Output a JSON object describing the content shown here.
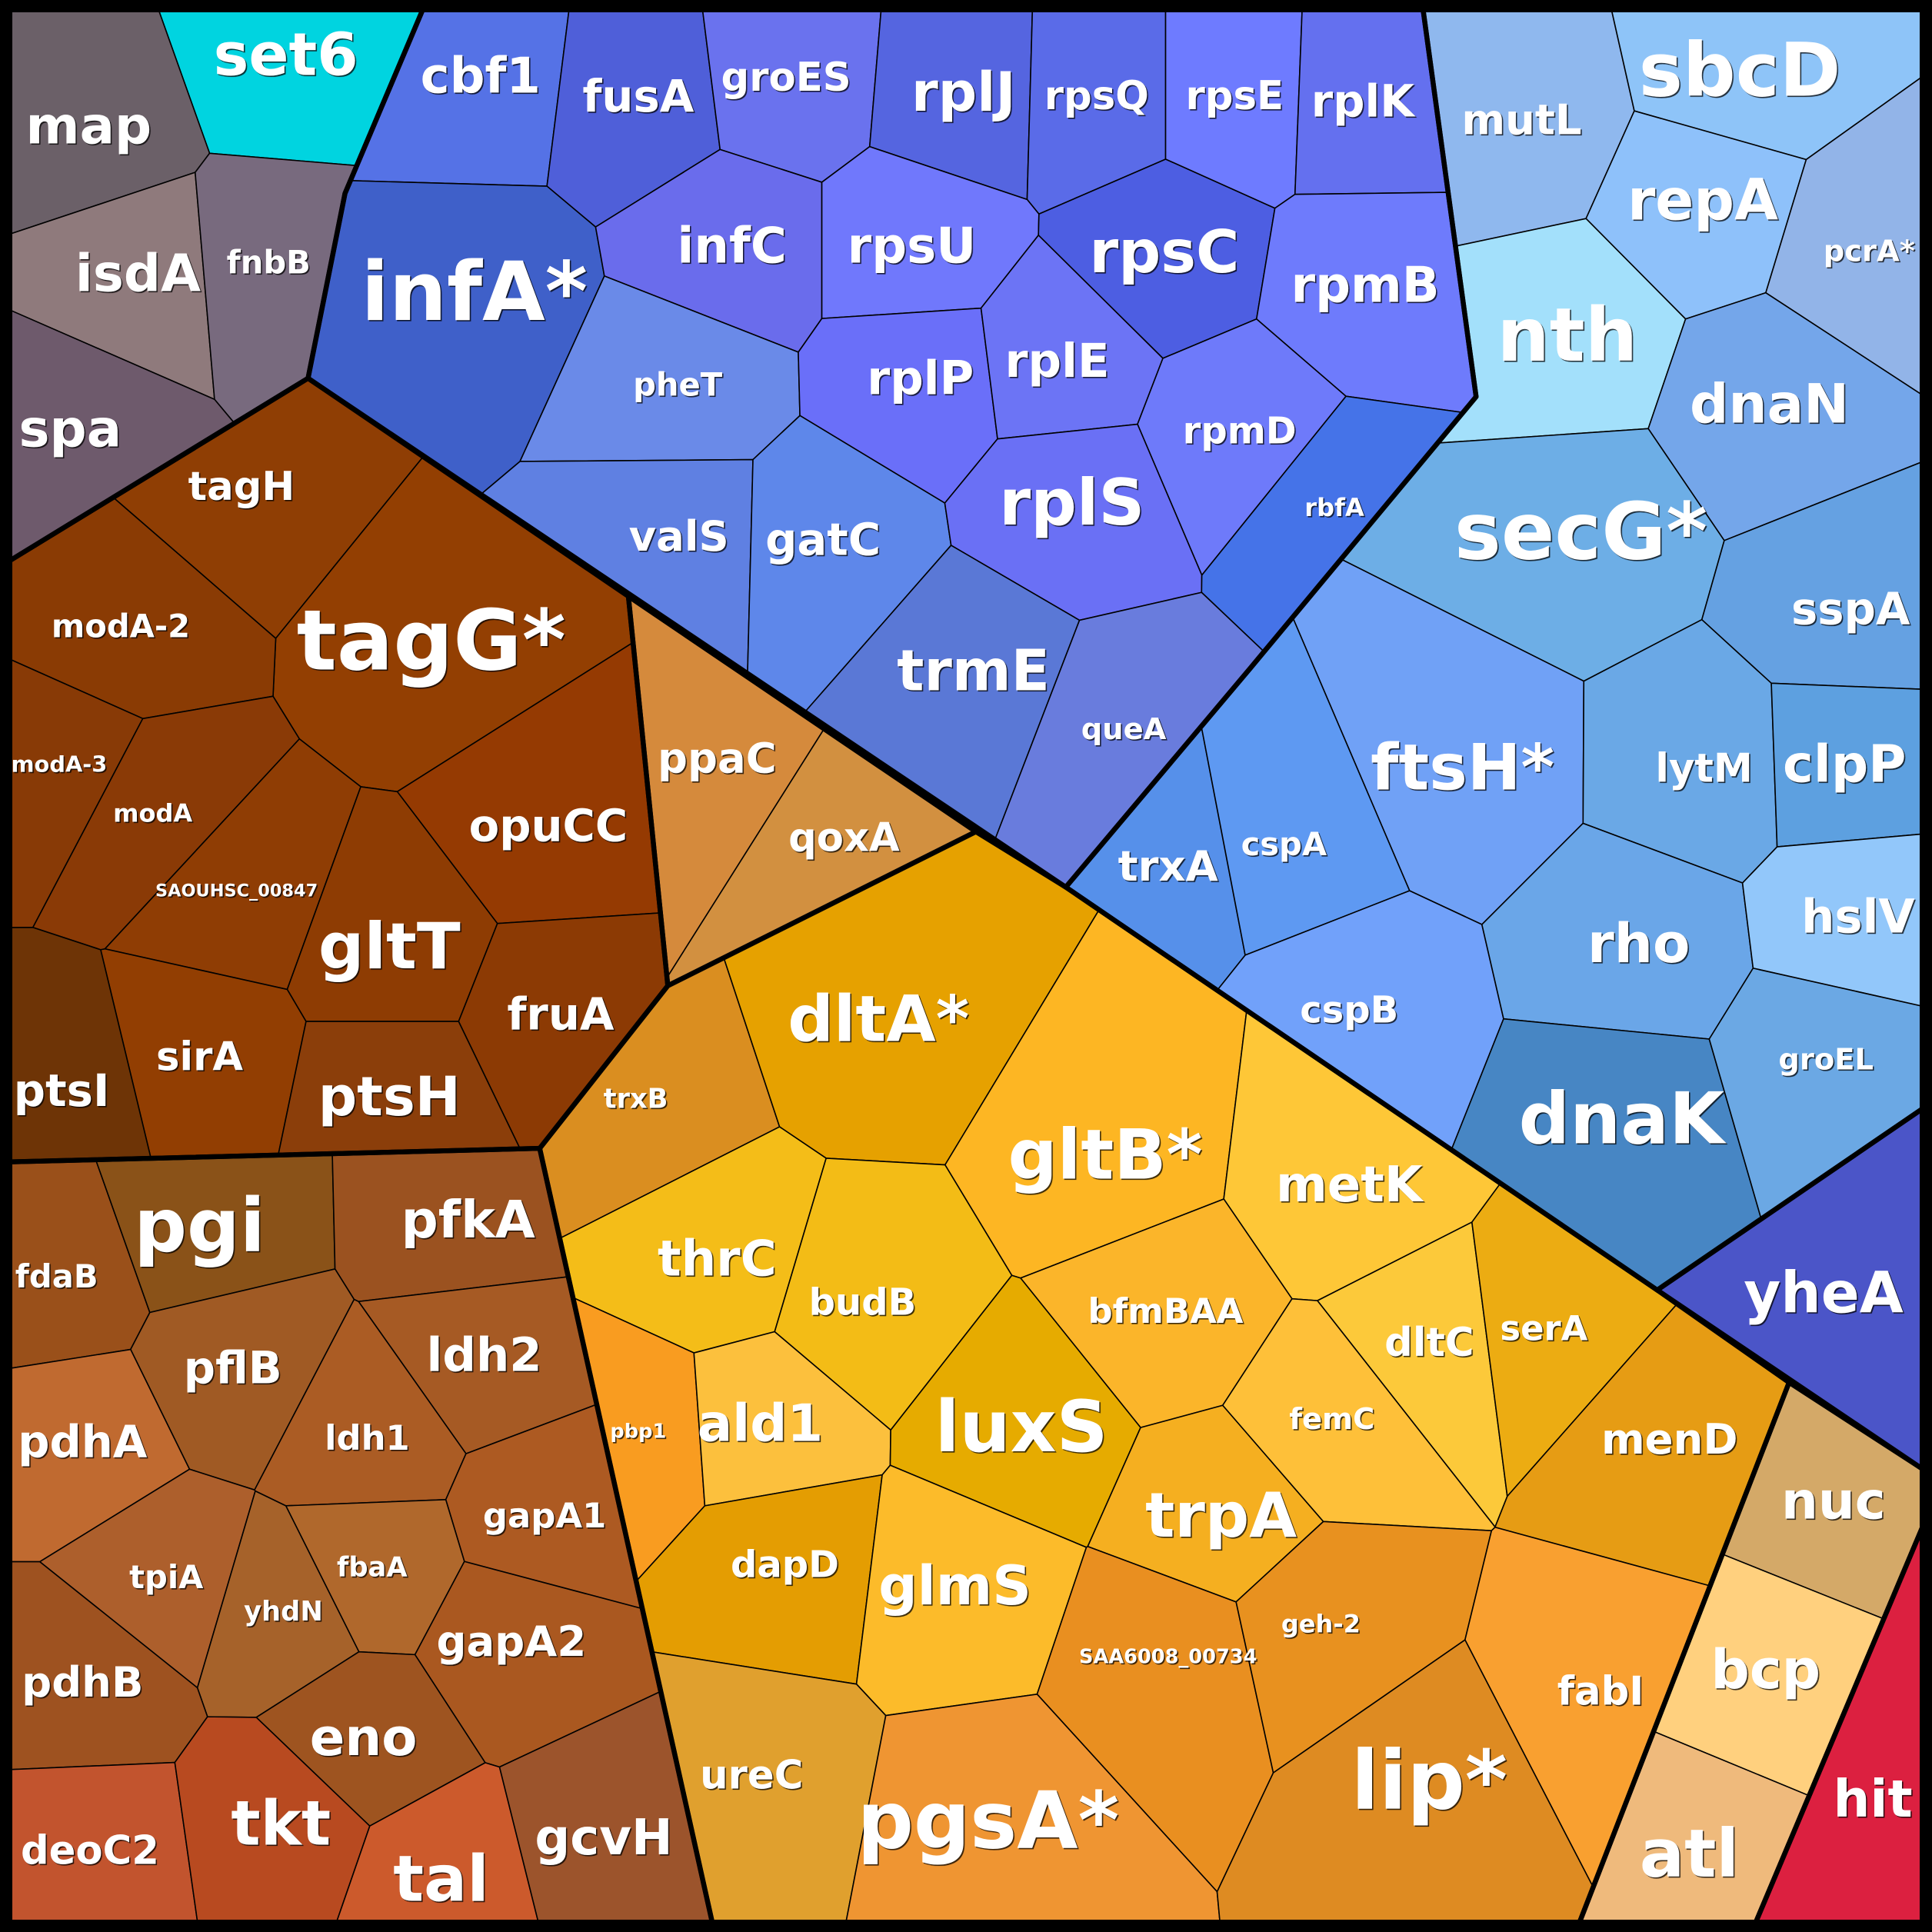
{
  "chart_data": {
    "type": "treemap",
    "subtype": "voronoi",
    "groups": [
      {
        "cells": [
          {
            "label": "set6",
            "color": "#00d4e0"
          },
          {
            "label": "map",
            "color": "#6b6068"
          },
          {
            "label": "isdA",
            "color": "#8f7a7c"
          },
          {
            "label": "fnbB",
            "color": "#786a7e"
          },
          {
            "label": "spa",
            "color": "#6e5a6c"
          }
        ]
      },
      {
        "cells": [
          {
            "label": "cbf1",
            "color": "#5572e6"
          },
          {
            "label": "fusA",
            "color": "#4f5fd9"
          },
          {
            "label": "groES",
            "color": "#6a72ee"
          },
          {
            "label": "rplJ",
            "color": "#5565e0"
          },
          {
            "label": "rpsQ",
            "color": "#5a6be8"
          },
          {
            "label": "rpsE",
            "color": "#6e7bff"
          },
          {
            "label": "rplK",
            "color": "#6470ef"
          },
          {
            "label": "infA*",
            "color": "#3f60c9"
          },
          {
            "label": "infC",
            "color": "#6a6cec"
          },
          {
            "label": "rpsU",
            "color": "#7078fc"
          },
          {
            "label": "rpsC",
            "color": "#4d5ee2"
          },
          {
            "label": "rpmB",
            "color": "#6e7bfc"
          },
          {
            "label": "pheT",
            "color": "#6a8ae8"
          },
          {
            "label": "rplP",
            "color": "#6a6ff9"
          },
          {
            "label": "rplE",
            "color": "#6c74f5"
          },
          {
            "label": "rpmD",
            "color": "#6e7afa"
          },
          {
            "label": "valS",
            "color": "#5f80e2"
          },
          {
            "label": "gatC",
            "color": "#5e87ea"
          },
          {
            "label": "rplS",
            "color": "#6a70f5"
          },
          {
            "label": "rbfA",
            "color": "#4573e8"
          },
          {
            "label": "trmE",
            "color": "#5a78d6"
          },
          {
            "label": "queA",
            "color": "#697cdd"
          }
        ]
      },
      {
        "cells": [
          {
            "label": "mutL",
            "color": "#8fb8ee"
          },
          {
            "label": "sbcD",
            "color": "#8ec4f8"
          },
          {
            "label": "repA",
            "color": "#8ec1fa"
          },
          {
            "label": "pcrA*",
            "color": "#92b4e8"
          },
          {
            "label": "nth",
            "color": "#a3e0fb"
          },
          {
            "label": "dnaN",
            "color": "#74a6ea"
          },
          {
            "label": "secG*",
            "color": "#6daee6"
          },
          {
            "label": "sspA",
            "color": "#65a1e2"
          },
          {
            "label": "ftsH*",
            "color": "#70a1f6"
          },
          {
            "label": "lytM",
            "color": "#6aa8e6"
          },
          {
            "label": "clpP",
            "color": "#5da0e0"
          },
          {
            "label": "trxA",
            "color": "#5690ea"
          },
          {
            "label": "cspA",
            "color": "#5e99f2"
          },
          {
            "label": "cspB",
            "color": "#71a1fa"
          },
          {
            "label": "rho",
            "color": "#6aa6e8"
          },
          {
            "label": "hslV",
            "color": "#92c7fa"
          },
          {
            "label": "dnaK",
            "color": "#4786c4"
          },
          {
            "label": "groEL",
            "color": "#6ba8e4"
          }
        ]
      },
      {
        "cells": [
          {
            "label": "yheA",
            "color": "#4b55c8"
          }
        ]
      },
      {
        "cells": [
          {
            "label": "tagH",
            "color": "#8f3e04"
          },
          {
            "label": "tagG*",
            "color": "#933f02"
          },
          {
            "label": "modA-2",
            "color": "#8a3b04"
          },
          {
            "label": "modA-3",
            "color": "#883a06"
          },
          {
            "label": "modA",
            "color": "#8a3a06"
          },
          {
            "label": "SAOUHSC_00847",
            "color": "#8f3d04"
          },
          {
            "label": "opuCC",
            "color": "#953a02"
          },
          {
            "label": "gltT",
            "color": "#8e3c03"
          },
          {
            "label": "fruA",
            "color": "#8c3a04"
          },
          {
            "label": "sirA",
            "color": "#923e02"
          },
          {
            "label": "ptsH",
            "color": "#8b3e0a"
          },
          {
            "label": "ptsI",
            "color": "#6e3406"
          }
        ]
      },
      {
        "cells": [
          {
            "label": "ppaC",
            "color": "#d58a3c"
          },
          {
            "label": "qoxA",
            "color": "#d29040"
          }
        ]
      },
      {
        "cells": [
          {
            "label": "trxB",
            "color": "#da8e20"
          },
          {
            "label": "dltA*",
            "color": "#e6a100"
          },
          {
            "label": "gltB*",
            "color": "#fdb623"
          },
          {
            "label": "metK",
            "color": "#fec737"
          },
          {
            "label": "thrC",
            "color": "#f4bd18"
          },
          {
            "label": "budB",
            "color": "#f3bc16"
          },
          {
            "label": "bfmBAA",
            "color": "#fbb52a"
          },
          {
            "label": "dltC",
            "color": "#fcc93a"
          },
          {
            "label": "serA",
            "color": "#ecac12"
          },
          {
            "label": "pbp1",
            "color": "#f99c20"
          },
          {
            "label": "ald1",
            "color": "#fcc03d"
          },
          {
            "label": "luxS",
            "color": "#e6ab00"
          },
          {
            "label": "femC",
            "color": "#fec039"
          },
          {
            "label": "menD",
            "color": "#e69c14"
          },
          {
            "label": "dapD",
            "color": "#e49d02"
          },
          {
            "label": "glmS",
            "color": "#fcbb2a"
          },
          {
            "label": "trpA",
            "color": "#f5af20"
          },
          {
            "label": "SAA6008_00734",
            "color": "#e98f20"
          },
          {
            "label": "geh-2",
            "color": "#e8911f"
          },
          {
            "label": "fabI",
            "color": "#f9a030"
          },
          {
            "label": "ureC",
            "color": "#e0a02e"
          },
          {
            "label": "pgsA*",
            "color": "#ef9532"
          },
          {
            "label": "lip*",
            "color": "#de8b22"
          }
        ]
      },
      {
        "cells": [
          {
            "label": "nuc",
            "color": "#d4a968"
          },
          {
            "label": "bcp",
            "color": "#ffd07e"
          },
          {
            "label": "atl",
            "color": "#efba7c"
          }
        ]
      },
      {
        "cells": [
          {
            "label": "hit",
            "color": "#dc2040"
          }
        ]
      },
      {
        "cells": [
          {
            "label": "fdaB",
            "color": "#9a501a"
          },
          {
            "label": "pgi",
            "color": "#8a5218"
          },
          {
            "label": "pfkA",
            "color": "#9b5220"
          },
          {
            "label": "pflB",
            "color": "#a05a24"
          },
          {
            "label": "ldh2",
            "color": "#a65a24"
          },
          {
            "label": "pdhA",
            "color": "#c06a30"
          },
          {
            "label": "ldh1",
            "color": "#ab5c24"
          },
          {
            "label": "gapA1",
            "color": "#ad5a22"
          },
          {
            "label": "tpiA",
            "color": "#ad5f2c"
          },
          {
            "label": "fbaA",
            "color": "#b0682c"
          },
          {
            "label": "yhdN",
            "color": "#a6622a"
          },
          {
            "label": "gapA2",
            "color": "#aa5820"
          },
          {
            "label": "pdhB",
            "color": "#9e5220"
          },
          {
            "label": "eno",
            "color": "#9e5420"
          },
          {
            "label": "deoC2",
            "color": "#c2542e"
          },
          {
            "label": "tkt",
            "color": "#b84a20"
          },
          {
            "label": "tal",
            "color": "#cc5a2c"
          },
          {
            "label": "gcvH",
            "color": "#9c542c"
          }
        ]
      }
    ]
  }
}
